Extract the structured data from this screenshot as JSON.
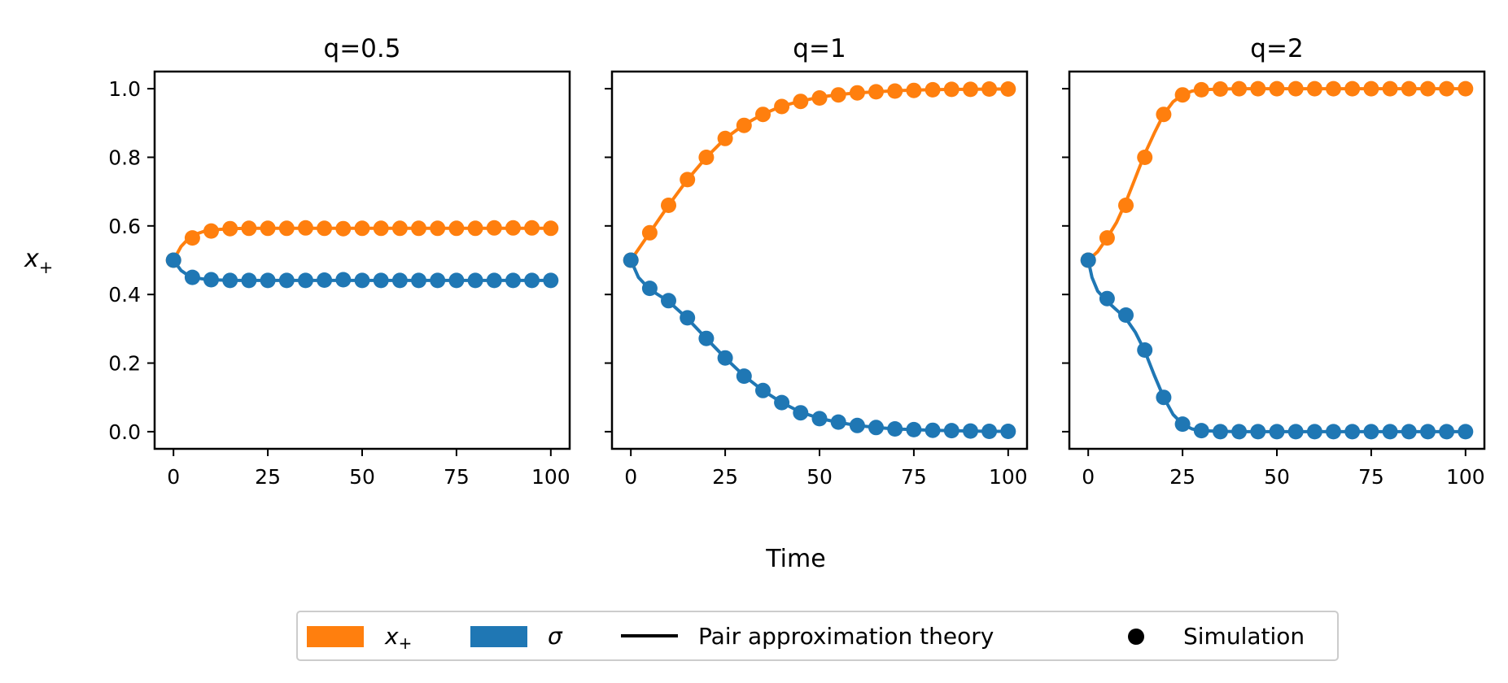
{
  "chart_data": [
    {
      "type": "line",
      "title": "q=0.5",
      "xlabel": "",
      "ylabel": "x₊",
      "xlim": [
        -5,
        105
      ],
      "ylim": [
        -0.05,
        1.05
      ],
      "xticks": [
        "0",
        "25",
        "50",
        "75",
        "100"
      ],
      "yticks": [
        "0.0",
        "0.2",
        "0.4",
        "0.6",
        "0.8",
        "1.0"
      ],
      "x": [
        0,
        5,
        10,
        15,
        20,
        25,
        30,
        35,
        40,
        45,
        50,
        55,
        60,
        65,
        70,
        75,
        80,
        85,
        90,
        95,
        100
      ],
      "series": [
        {
          "name": "x₊ (simulation)",
          "color": "#ff7f0e",
          "values": [
            0.5,
            0.565,
            0.585,
            0.592,
            0.593,
            0.593,
            0.593,
            0.594,
            0.593,
            0.592,
            0.593,
            0.593,
            0.593,
            0.593,
            0.593,
            0.593,
            0.593,
            0.594,
            0.594,
            0.594,
            0.593
          ]
        },
        {
          "name": "σ (simulation)",
          "color": "#1f77b4",
          "values": [
            0.5,
            0.45,
            0.443,
            0.441,
            0.441,
            0.441,
            0.441,
            0.441,
            0.442,
            0.443,
            0.441,
            0.441,
            0.441,
            0.441,
            0.441,
            0.441,
            0.441,
            0.441,
            0.441,
            0.441,
            0.441
          ]
        },
        {
          "name": "x₊ (theory)",
          "color": "#ff7f0e",
          "x": [
            0,
            2,
            4,
            6,
            8,
            10,
            15,
            20,
            30,
            50,
            75,
            100
          ],
          "values": [
            0.5,
            0.54,
            0.563,
            0.576,
            0.584,
            0.588,
            0.592,
            0.593,
            0.593,
            0.593,
            0.593,
            0.593
          ]
        },
        {
          "name": "σ (theory)",
          "color": "#1f77b4",
          "x": [
            0,
            2,
            4,
            6,
            8,
            10,
            15,
            20,
            30,
            50,
            75,
            100
          ],
          "values": [
            0.5,
            0.47,
            0.455,
            0.448,
            0.445,
            0.443,
            0.441,
            0.441,
            0.441,
            0.441,
            0.441,
            0.441
          ]
        }
      ]
    },
    {
      "type": "line",
      "title": "q=1",
      "xlabel": "",
      "ylabel": "",
      "xlim": [
        -5,
        105
      ],
      "ylim": [
        -0.05,
        1.05
      ],
      "xticks": [
        "0",
        "25",
        "50",
        "75",
        "100"
      ],
      "yticks": [
        "0.0",
        "0.2",
        "0.4",
        "0.6",
        "0.8",
        "1.0"
      ],
      "x": [
        0,
        5,
        10,
        15,
        20,
        25,
        30,
        35,
        40,
        45,
        50,
        55,
        60,
        65,
        70,
        75,
        80,
        85,
        90,
        95,
        100
      ],
      "series": [
        {
          "name": "x₊ (simulation)",
          "color": "#ff7f0e",
          "values": [
            0.5,
            0.58,
            0.66,
            0.735,
            0.8,
            0.855,
            0.893,
            0.925,
            0.948,
            0.963,
            0.973,
            0.982,
            0.988,
            0.991,
            0.993,
            0.995,
            0.997,
            0.998,
            0.998,
            0.999,
            0.999
          ]
        },
        {
          "name": "σ (simulation)",
          "color": "#1f77b4",
          "values": [
            0.5,
            0.418,
            0.382,
            0.332,
            0.272,
            0.215,
            0.162,
            0.12,
            0.085,
            0.055,
            0.038,
            0.028,
            0.018,
            0.012,
            0.008,
            0.006,
            0.004,
            0.003,
            0.002,
            0.001,
            0.001
          ]
        },
        {
          "name": "x₊ (theory)",
          "color": "#ff7f0e",
          "x": [
            0,
            5,
            10,
            15,
            20,
            25,
            30,
            35,
            40,
            45,
            50,
            55,
            60,
            65,
            70,
            75,
            80,
            85,
            90,
            95,
            100
          ],
          "values": [
            0.5,
            0.58,
            0.66,
            0.735,
            0.8,
            0.855,
            0.895,
            0.926,
            0.949,
            0.964,
            0.975,
            0.983,
            0.988,
            0.991,
            0.994,
            0.996,
            0.997,
            0.998,
            0.998,
            0.999,
            0.999
          ]
        },
        {
          "name": "σ (theory)",
          "color": "#1f77b4",
          "x": [
            0,
            2,
            5,
            10,
            15,
            20,
            25,
            30,
            35,
            40,
            45,
            50,
            55,
            60,
            65,
            70,
            75,
            80,
            85,
            90,
            95,
            100
          ],
          "values": [
            0.5,
            0.45,
            0.415,
            0.38,
            0.33,
            0.272,
            0.215,
            0.163,
            0.12,
            0.085,
            0.057,
            0.039,
            0.027,
            0.018,
            0.012,
            0.008,
            0.006,
            0.004,
            0.003,
            0.002,
            0.001,
            0.001
          ]
        }
      ]
    },
    {
      "type": "line",
      "title": "q=2",
      "xlabel": "",
      "ylabel": "",
      "xlim": [
        -5,
        105
      ],
      "ylim": [
        -0.05,
        1.05
      ],
      "xticks": [
        "0",
        "25",
        "50",
        "75",
        "100"
      ],
      "yticks": [
        "0.0",
        "0.2",
        "0.4",
        "0.6",
        "0.8",
        "1.0"
      ],
      "x": [
        0,
        5,
        10,
        15,
        20,
        25,
        30,
        35,
        40,
        45,
        50,
        55,
        60,
        65,
        70,
        75,
        80,
        85,
        90,
        95,
        100
      ],
      "series": [
        {
          "name": "x₊ (simulation)",
          "color": "#ff7f0e",
          "values": [
            0.5,
            0.565,
            0.66,
            0.8,
            0.925,
            0.982,
            0.997,
            0.999,
            1.0,
            1.0,
            1.0,
            1.0,
            1.0,
            1.0,
            1.0,
            1.0,
            1.0,
            1.0,
            1.0,
            1.0,
            1.0
          ]
        },
        {
          "name": "σ (simulation)",
          "color": "#1f77b4",
          "values": [
            0.5,
            0.388,
            0.34,
            0.238,
            0.1,
            0.022,
            0.003,
            0.0,
            0.0,
            0.0,
            0.0,
            0.0,
            0.0,
            0.0,
            0.0,
            0.0,
            0.0,
            0.0,
            0.0,
            0.0,
            0.0
          ]
        },
        {
          "name": "x₊ (theory)",
          "color": "#ff7f0e",
          "x": [
            0,
            2.5,
            5,
            7.5,
            10,
            12.5,
            15,
            17.5,
            20,
            22.5,
            25,
            27.5,
            30,
            35,
            40,
            50,
            75,
            100
          ],
          "values": [
            0.5,
            0.525,
            0.565,
            0.61,
            0.67,
            0.74,
            0.81,
            0.87,
            0.925,
            0.962,
            0.982,
            0.993,
            0.997,
            0.999,
            1.0,
            1.0,
            1.0,
            1.0
          ]
        },
        {
          "name": "σ (theory)",
          "color": "#1f77b4",
          "x": [
            0,
            1,
            2.5,
            5,
            7.5,
            10,
            12.5,
            15,
            17.5,
            20,
            22.5,
            25,
            27.5,
            30,
            35,
            40,
            50,
            75,
            100
          ],
          "values": [
            0.5,
            0.45,
            0.41,
            0.38,
            0.355,
            0.33,
            0.29,
            0.235,
            0.165,
            0.1,
            0.05,
            0.022,
            0.008,
            0.003,
            0.001,
            0.0,
            0.0,
            0.0,
            0.0
          ]
        }
      ]
    }
  ],
  "figure": {
    "ylabel_base": "x",
    "ylabel_sub": "+",
    "xlabel": "Time"
  },
  "legend": {
    "placement": "bottom-center",
    "items": [
      {
        "kind": "patch",
        "label_base": "x",
        "label_sub": "+",
        "color": "#ff7f0e"
      },
      {
        "kind": "patch",
        "label": "σ",
        "color": "#1f77b4"
      },
      {
        "kind": "line",
        "label": "Pair approximation theory",
        "color": "#000000"
      },
      {
        "kind": "marker",
        "label": "Simulation",
        "color": "#000000"
      }
    ]
  }
}
